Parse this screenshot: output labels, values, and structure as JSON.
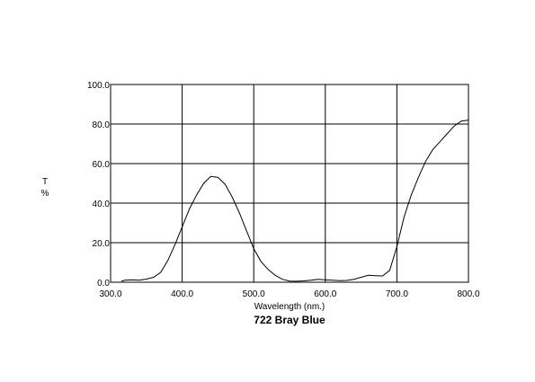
{
  "chart_data": {
    "type": "line",
    "title": "722 Bray Blue",
    "xlabel": "Wavelength (nm.)",
    "ylabel": "T %",
    "ylabel_parts": [
      "T",
      "%"
    ],
    "xlim": [
      300,
      800
    ],
    "ylim": [
      0,
      100
    ],
    "grid": true,
    "x_ticks": [
      "300.0",
      "400.0",
      "500.0",
      "600.0",
      "700.0",
      "800.0"
    ],
    "y_ticks": [
      "0.0",
      "20.0",
      "40.0",
      "60.0",
      "80.0",
      "100.0"
    ],
    "series": [
      {
        "x": [
          315,
          320,
          330,
          340,
          350,
          360,
          370,
          380,
          390,
          400,
          410,
          420,
          430,
          440,
          450,
          460,
          470,
          480,
          490,
          500,
          510,
          520,
          530,
          540,
          550,
          560,
          570,
          580,
          590,
          600,
          610,
          620,
          630,
          640,
          650,
          660,
          670,
          680,
          690,
          700,
          710,
          720,
          730,
          740,
          750,
          760,
          770,
          780,
          790,
          800
        ],
        "values": [
          0.5,
          1.0,
          1.2,
          1.0,
          1.6,
          2.5,
          5.0,
          11.0,
          19.0,
          28.0,
          37.0,
          44.0,
          50.0,
          53.5,
          53.0,
          49.5,
          43.0,
          35.0,
          26.0,
          17.0,
          10.5,
          6.5,
          3.5,
          1.5,
          0.6,
          0.5,
          0.7,
          1.0,
          1.5,
          1.2,
          1.0,
          0.8,
          0.9,
          1.5,
          2.5,
          3.5,
          3.3,
          3.2,
          6.0,
          18.0,
          33.0,
          44.0,
          53.0,
          61.0,
          67.0,
          71.0,
          75.0,
          79.0,
          81.5,
          82.0
        ]
      }
    ]
  }
}
